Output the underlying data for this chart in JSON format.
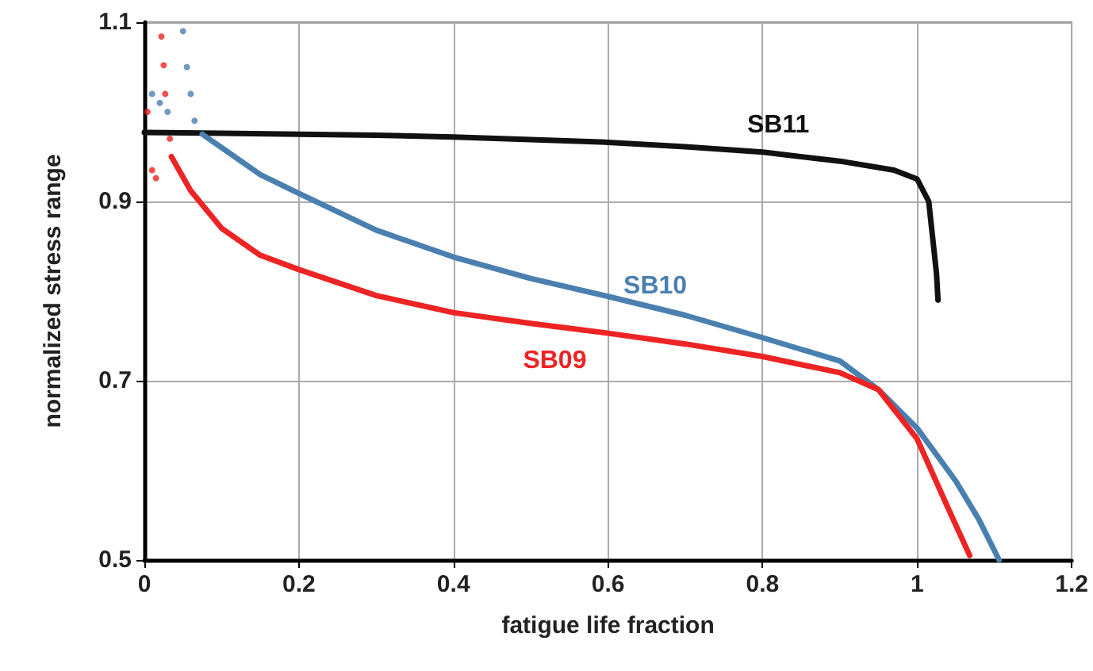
{
  "chart_data": {
    "type": "line",
    "xlabel": "fatigue life fraction",
    "ylabel": "normalized stress range",
    "xlim": [
      0,
      1.2
    ],
    "xticks": [
      0,
      0.2,
      0.4,
      0.6,
      0.8,
      1,
      1.2
    ],
    "ylim": [
      0.5,
      1.1
    ],
    "yticks": [
      0.5,
      0.7,
      0.9,
      1.1
    ],
    "grid": true,
    "legend": false,
    "marker": "none",
    "line_style": "solid",
    "series": [
      {
        "name": "SB11",
        "color": "#111111",
        "x": [
          0,
          0.1,
          0.2,
          0.3,
          0.4,
          0.5,
          0.6,
          0.7,
          0.8,
          0.9,
          0.97,
          1.0,
          1.015,
          1.02,
          1.025,
          1.027
        ],
        "values": [
          0.977,
          0.976,
          0.975,
          0.974,
          0.972,
          0.969,
          0.966,
          0.961,
          0.955,
          0.945,
          0.935,
          0.925,
          0.9,
          0.86,
          0.82,
          0.79
        ]
      },
      {
        "name": "SB10",
        "color": "#4a80b0",
        "x": [
          0.075,
          0.1,
          0.15,
          0.2,
          0.3,
          0.4,
          0.5,
          0.6,
          0.7,
          0.8,
          0.9,
          0.95,
          1.0,
          1.05,
          1.08,
          1.106
        ],
        "values": [
          0.975,
          0.96,
          0.93,
          0.909,
          0.868,
          0.838,
          0.814,
          0.794,
          0.773,
          0.748,
          0.722,
          0.69,
          0.647,
          0.588,
          0.545,
          0.5
        ]
      },
      {
        "type": "scatter",
        "marker": "circle",
        "color": "#4a80b0",
        "x": [
          0.01,
          0.02,
          0.03,
          0.05,
          0.055,
          0.06,
          0.065
        ],
        "values": [
          1.02,
          1.01,
          1.0,
          1.09,
          1.05,
          1.02,
          0.99
        ]
      },
      {
        "name": "SB09",
        "color": "#ee2424",
        "x": [
          0.035,
          0.06,
          0.1,
          0.15,
          0.2,
          0.3,
          0.4,
          0.5,
          0.6,
          0.7,
          0.8,
          0.9,
          0.95,
          1.0,
          1.04,
          1.068
        ],
        "values": [
          0.95,
          0.912,
          0.87,
          0.84,
          0.824,
          0.795,
          0.776,
          0.764,
          0.753,
          0.741,
          0.727,
          0.709,
          0.69,
          0.635,
          0.558,
          0.505
        ]
      },
      {
        "type": "scatter",
        "marker": "circle",
        "color": "#ee2424",
        "x": [
          0.004,
          0.01,
          0.015,
          0.022,
          0.025,
          0.027,
          0.033
        ],
        "values": [
          1.0,
          0.935,
          0.926,
          1.084,
          1.052,
          1.02,
          0.97
        ]
      }
    ]
  }
}
